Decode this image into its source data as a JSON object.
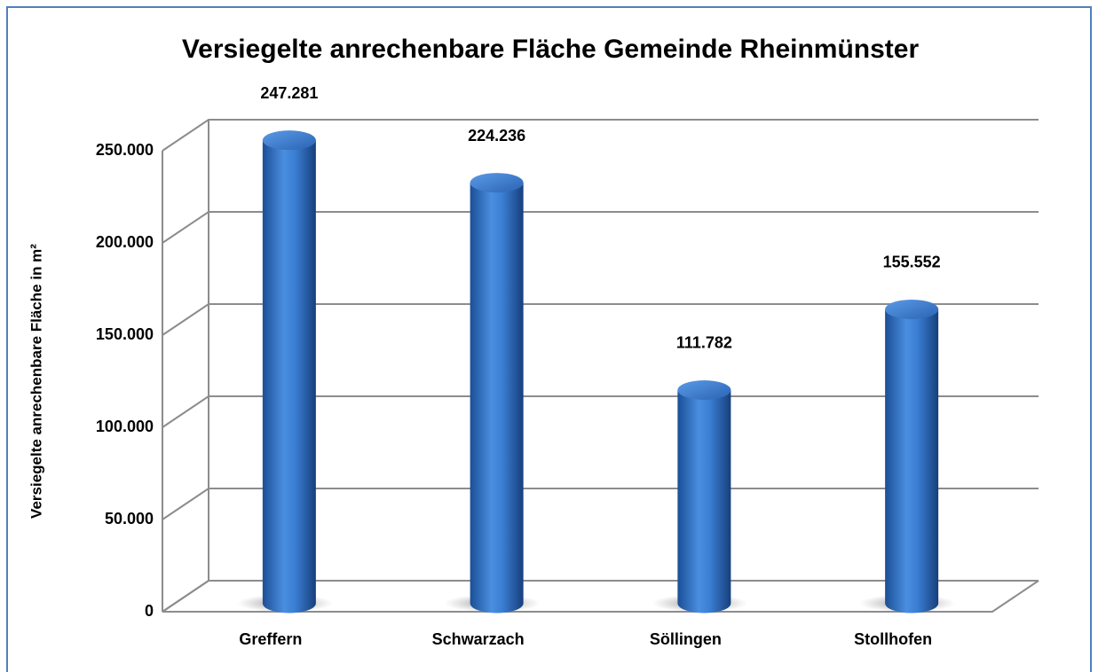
{
  "chart_data": {
    "type": "bar3d",
    "title": "Versiegelte anrechenbare Fläche Gemeinde Rheinmünster",
    "y_label": "Versiegelte anrechenbare Fläche in m²",
    "categories": [
      "Greffern",
      "Schwarzach",
      "Söllingen",
      "Stollhofen"
    ],
    "values": [
      247281,
      224236,
      111782,
      155552
    ],
    "value_labels": [
      "247.281",
      "224.236",
      "111.782",
      "155.552"
    ],
    "color": "#2f6fc4",
    "ylim": [
      0,
      250000
    ],
    "yticks": [
      {
        "value": 0,
        "label": "0"
      },
      {
        "value": 50000,
        "label": "50.000"
      },
      {
        "value": 100000,
        "label": "100.000"
      },
      {
        "value": 150000,
        "label": "150.000"
      },
      {
        "value": 200000,
        "label": "200.000"
      },
      {
        "value": 250000,
        "label": "250.000"
      }
    ],
    "grid": true
  }
}
